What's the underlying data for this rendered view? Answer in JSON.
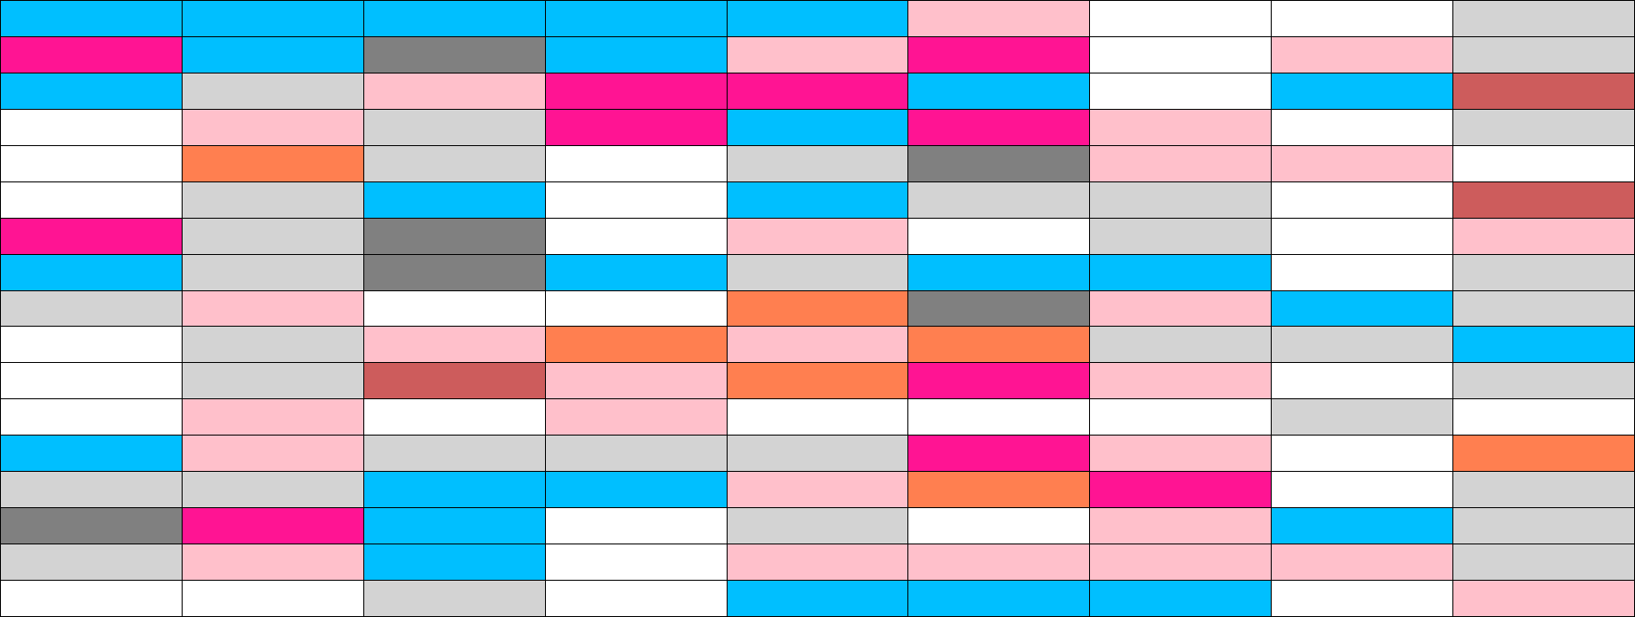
{
  "grid": {
    "rows": [
      [
        "deepskyblue",
        "deepskyblue",
        "deepskyblue",
        "deepskyblue",
        "deepskyblue",
        "pink",
        "white",
        "white",
        "lightgray"
      ],
      [
        "deeppink",
        "deepskyblue",
        "gray",
        "deepskyblue",
        "pink",
        "deeppink",
        "white",
        "pink",
        "lightgray"
      ],
      [
        "deepskyblue",
        "lightgray",
        "pink",
        "deeppink",
        "deeppink",
        "deepskyblue",
        "white",
        "deepskyblue",
        "indianred"
      ],
      [
        "white",
        "pink",
        "lightgray",
        "deeppink",
        "deepskyblue",
        "deeppink",
        "pink",
        "white",
        "lightgray"
      ],
      [
        "white",
        "coral",
        "lightgray",
        "white",
        "lightgray",
        "gray",
        "pink",
        "pink",
        "white"
      ],
      [
        "white",
        "lightgray",
        "deepskyblue",
        "white",
        "deepskyblue",
        "lightgray",
        "lightgray",
        "white",
        "indianred"
      ],
      [
        "deeppink",
        "lightgray",
        "gray",
        "white",
        "pink",
        "white",
        "lightgray",
        "white",
        "pink"
      ],
      [
        "deepskyblue",
        "lightgray",
        "gray",
        "deepskyblue",
        "lightgray",
        "deepskyblue",
        "deepskyblue",
        "white",
        "lightgray"
      ],
      [
        "lightgray",
        "pink",
        "white",
        "white",
        "coral",
        "gray",
        "pink",
        "deepskyblue",
        "lightgray"
      ],
      [
        "white",
        "lightgray",
        "pink",
        "coral",
        "pink",
        "coral",
        "lightgray",
        "lightgray",
        "deepskyblue"
      ],
      [
        "white",
        "lightgray",
        "indianred",
        "pink",
        "coral",
        "deeppink",
        "pink",
        "white",
        "lightgray"
      ],
      [
        "white",
        "pink",
        "white",
        "pink",
        "white",
        "white",
        "white",
        "lightgray",
        "white"
      ],
      [
        "deepskyblue",
        "pink",
        "lightgray",
        "lightgray",
        "lightgray",
        "deeppink",
        "pink",
        "white",
        "coral"
      ],
      [
        "lightgray",
        "lightgray",
        "deepskyblue",
        "deepskyblue",
        "pink",
        "coral",
        "deeppink",
        "white",
        "lightgray"
      ],
      [
        "gray",
        "deeppink",
        "deepskyblue",
        "white",
        "lightgray",
        "white",
        "pink",
        "deepskyblue",
        "lightgray"
      ],
      [
        "lightgray",
        "pink",
        "deepskyblue",
        "white",
        "pink",
        "pink",
        "pink",
        "pink",
        "lightgray"
      ],
      [
        "white",
        "white",
        "lightgray",
        "white",
        "deepskyblue",
        "deepskyblue",
        "deepskyblue",
        "white",
        "pink"
      ]
    ]
  }
}
